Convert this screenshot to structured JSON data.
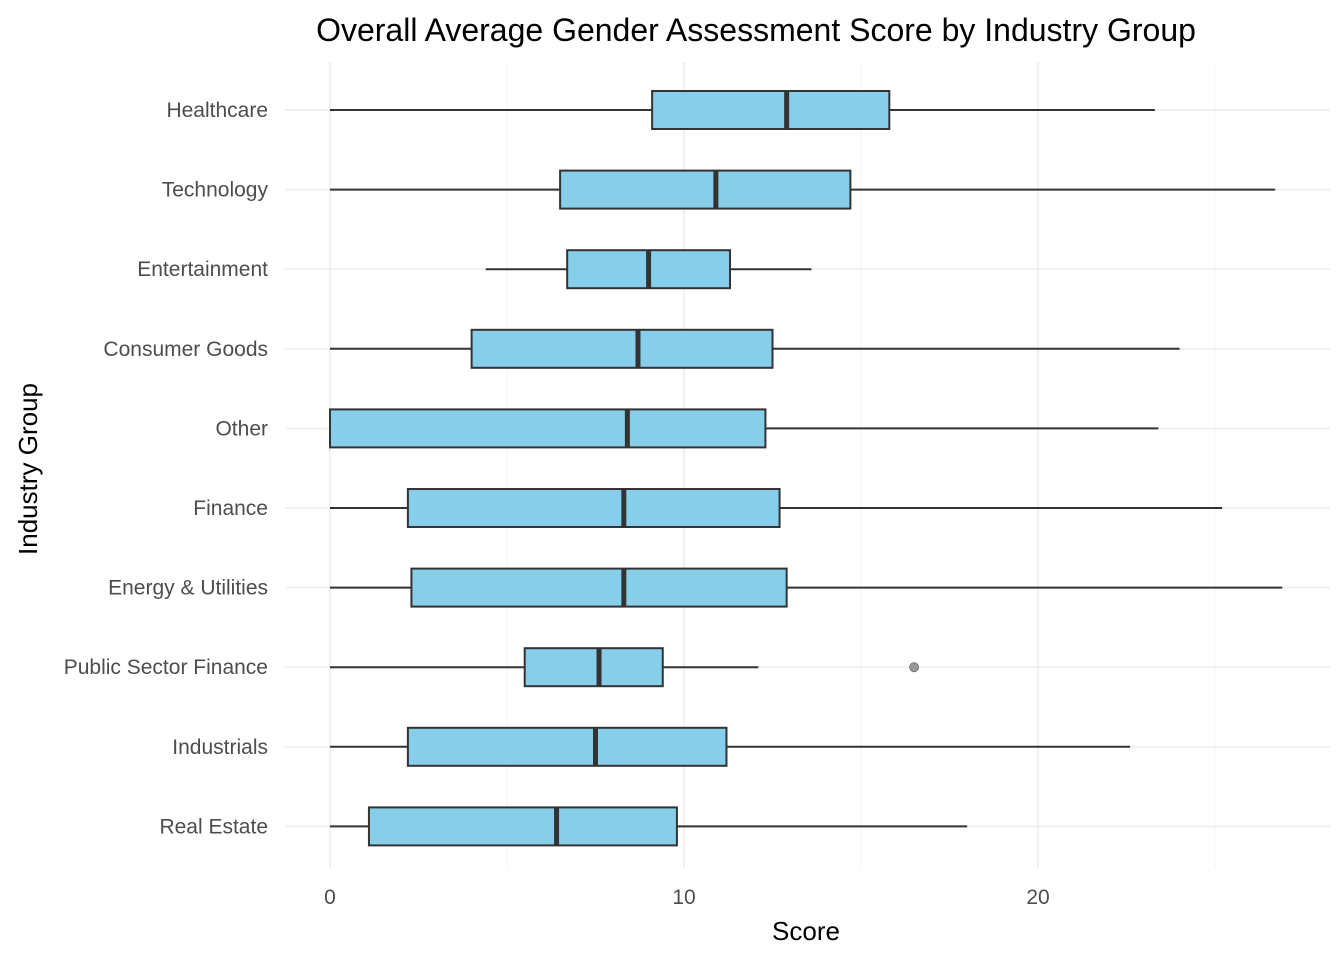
{
  "chart_data": {
    "type": "boxplot",
    "orientation": "horizontal",
    "title": "Overall Average Gender Assessment Score by Industry Group",
    "xlabel": "Score",
    "ylabel": "Industry Group",
    "xlim": [
      -1.2,
      28.0
    ],
    "x_ticks": [
      0,
      10,
      20
    ],
    "x_tick_labels": [
      "0",
      "10",
      "20"
    ],
    "grid": true,
    "legend": "none",
    "box_fill": "#87ceeb",
    "box_stroke": "#333333",
    "categories": [
      "Healthcare",
      "Technology",
      "Entertainment",
      "Consumer Goods",
      "Other",
      "Finance",
      "Energy & Utilities",
      "Public Sector Finance",
      "Industrials",
      "Real Estate"
    ],
    "series": [
      {
        "category": "Healthcare",
        "min": 0.0,
        "q1": 9.1,
        "median": 12.9,
        "q3": 15.8,
        "max": 23.3,
        "outliers": []
      },
      {
        "category": "Technology",
        "min": 0.0,
        "q1": 6.5,
        "median": 10.9,
        "q3": 14.7,
        "max": 26.7,
        "outliers": []
      },
      {
        "category": "Entertainment",
        "min": 4.4,
        "q1": 6.7,
        "median": 9.0,
        "q3": 11.3,
        "max": 13.6,
        "outliers": []
      },
      {
        "category": "Consumer Goods",
        "min": 0.0,
        "q1": 4.0,
        "median": 8.7,
        "q3": 12.5,
        "max": 24.0,
        "outliers": []
      },
      {
        "category": "Other",
        "min": 0.0,
        "q1": 0.0,
        "median": 8.4,
        "q3": 12.3,
        "max": 23.4,
        "outliers": []
      },
      {
        "category": "Finance",
        "min": 0.0,
        "q1": 2.2,
        "median": 8.3,
        "q3": 12.7,
        "max": 25.2,
        "outliers": []
      },
      {
        "category": "Energy & Utilities",
        "min": 0.0,
        "q1": 2.3,
        "median": 8.3,
        "q3": 12.9,
        "max": 26.9,
        "outliers": []
      },
      {
        "category": "Public Sector Finance",
        "min": 0.0,
        "q1": 5.5,
        "median": 7.6,
        "q3": 9.4,
        "max": 12.1,
        "outliers": [
          16.5
        ]
      },
      {
        "category": "Industrials",
        "min": 0.0,
        "q1": 2.2,
        "median": 7.5,
        "q3": 11.2,
        "max": 22.6,
        "outliers": []
      },
      {
        "category": "Real Estate",
        "min": 0.0,
        "q1": 1.1,
        "median": 6.4,
        "q3": 9.8,
        "max": 18.0,
        "outliers": []
      }
    ]
  }
}
